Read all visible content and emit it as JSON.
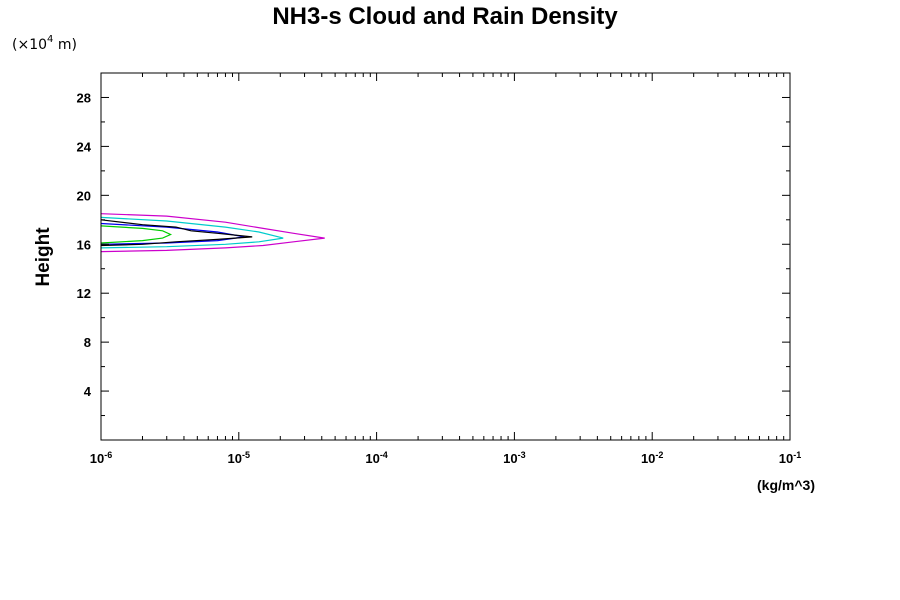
{
  "chart_data": {
    "type": "line",
    "title": "NH3-s Cloud and Rain Density",
    "y_unit_note_prefix": "(×10",
    "y_unit_note_exp": "4",
    "y_unit_note_suffix": " m)",
    "ylabel": "Height",
    "xlabel": "(kg/m^3)",
    "x_scale": "log",
    "xlim": [
      1e-06,
      0.1
    ],
    "ylim": [
      0,
      30
    ],
    "x_ticks": [
      {
        "base": "10",
        "exp": "-6",
        "value": 1e-06
      },
      {
        "base": "10",
        "exp": "-5",
        "value": 1e-05
      },
      {
        "base": "10",
        "exp": "-4",
        "value": 0.0001
      },
      {
        "base": "10",
        "exp": "-3",
        "value": 0.001
      },
      {
        "base": "10",
        "exp": "-2",
        "value": 0.01
      },
      {
        "base": "10",
        "exp": "-1",
        "value": 0.1
      }
    ],
    "y_ticks": [
      "4",
      "8",
      "12",
      "16",
      "20",
      "24",
      "28"
    ],
    "grid": false,
    "legend": "none",
    "series": [
      {
        "color": "#cc00cc",
        "points": [
          [
            1e-06,
            18.5
          ],
          [
            3e-06,
            18.3
          ],
          [
            8e-06,
            17.8
          ],
          [
            1.5e-05,
            17.3
          ],
          [
            2.5e-05,
            16.9
          ],
          [
            4.2e-05,
            16.5
          ],
          [
            2.5e-05,
            16.2
          ],
          [
            1.5e-05,
            15.9
          ],
          [
            8e-06,
            15.7
          ],
          [
            3e-06,
            15.5
          ],
          [
            1e-06,
            15.4
          ]
        ]
      },
      {
        "color": "#00cccc",
        "points": [
          [
            1e-06,
            18.2
          ],
          [
            3e-06,
            17.9
          ],
          [
            8e-06,
            17.4
          ],
          [
            1.4e-05,
            17.0
          ],
          [
            2.1e-05,
            16.5
          ],
          [
            1.4e-05,
            16.2
          ],
          [
            8e-06,
            16.0
          ],
          [
            3e-06,
            15.8
          ],
          [
            1e-06,
            15.7
          ]
        ]
      },
      {
        "color": "#0000ee",
        "points": [
          [
            1e-06,
            17.7
          ],
          [
            3e-06,
            17.4
          ],
          [
            7e-06,
            17.0
          ],
          [
            1.1e-05,
            16.6
          ],
          [
            7e-06,
            16.3
          ],
          [
            3e-06,
            16.1
          ],
          [
            1e-06,
            16.0
          ]
        ]
      },
      {
        "color": "#000000",
        "points": [
          [
            1e-06,
            18.0
          ],
          [
            2e-06,
            17.6
          ],
          [
            3.5e-06,
            17.4
          ],
          [
            4.5e-06,
            17.1
          ],
          [
            7e-06,
            16.9
          ],
          [
            1.25e-05,
            16.6
          ],
          [
            7e-06,
            16.4
          ],
          [
            3.5e-06,
            16.2
          ],
          [
            2e-06,
            16.0
          ],
          [
            1e-06,
            15.9
          ]
        ]
      },
      {
        "color": "#00cc00",
        "points": [
          [
            1e-06,
            17.5
          ],
          [
            2e-06,
            17.3
          ],
          [
            2.8e-06,
            17.1
          ],
          [
            3.2e-06,
            16.8
          ],
          [
            2.8e-06,
            16.5
          ],
          [
            2e-06,
            16.3
          ],
          [
            1e-06,
            16.1
          ]
        ]
      }
    ]
  }
}
